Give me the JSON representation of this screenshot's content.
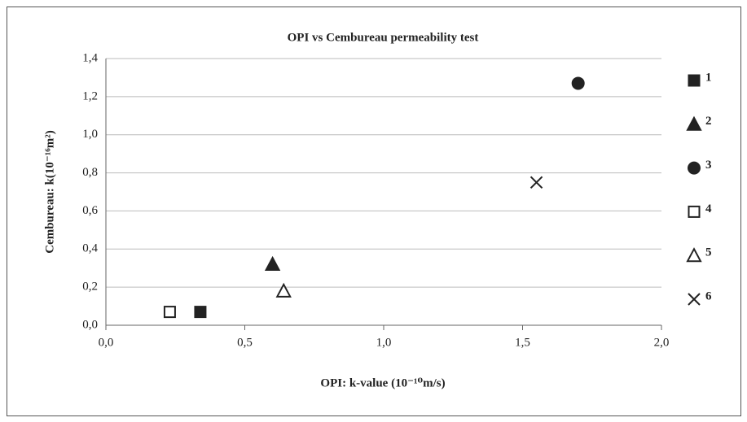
{
  "chart_data": {
    "type": "scatter",
    "title": "OPI vs Cembureau permeability test",
    "x_label": "OPI: k-value (10⁻¹⁰m/s)",
    "y_label": "Cembureau: k(10⁻¹⁶m²)",
    "xlim": [
      0,
      2
    ],
    "ylim": [
      0,
      1.4
    ],
    "xticks": [
      {
        "value": 0,
        "label": "0,0"
      },
      {
        "value": 0.5,
        "label": "0,5"
      },
      {
        "value": 1,
        "label": "1,0"
      },
      {
        "value": 1.5,
        "label": "1,5"
      },
      {
        "value": 2,
        "label": "2,0"
      }
    ],
    "yticks": [
      {
        "value": 0,
        "label": "0,0"
      },
      {
        "value": 0.2,
        "label": "0,2"
      },
      {
        "value": 0.4,
        "label": "0,4"
      },
      {
        "value": 0.6,
        "label": "0,6"
      },
      {
        "value": 0.8,
        "label": "0,8"
      },
      {
        "value": 1,
        "label": "1,0"
      },
      {
        "value": 1.2,
        "label": "1,2"
      },
      {
        "value": 1.4,
        "label": "1,4"
      }
    ],
    "grid": true,
    "legend": "right",
    "series": [
      {
        "name": "1",
        "color": "#222222",
        "marker": "square",
        "filled": true,
        "x": [
          0.34
        ],
        "values": [
          0.07
        ]
      },
      {
        "name": "2",
        "color": "#222222",
        "marker": "triangle",
        "filled": true,
        "x": [
          0.6
        ],
        "values": [
          0.32
        ]
      },
      {
        "name": "3",
        "color": "#222222",
        "marker": "circle",
        "filled": true,
        "x": [
          1.7
        ],
        "values": [
          1.27
        ]
      },
      {
        "name": "4",
        "color": "#222222",
        "marker": "square",
        "filled": false,
        "x": [
          0.23
        ],
        "values": [
          0.07
        ]
      },
      {
        "name": "5",
        "color": "#222222",
        "marker": "triangle",
        "filled": false,
        "x": [
          0.64
        ],
        "values": [
          0.18
        ]
      },
      {
        "name": "6",
        "color": "#222222",
        "marker": "x",
        "filled": false,
        "x": [
          1.55
        ],
        "values": [
          0.75
        ]
      }
    ]
  }
}
